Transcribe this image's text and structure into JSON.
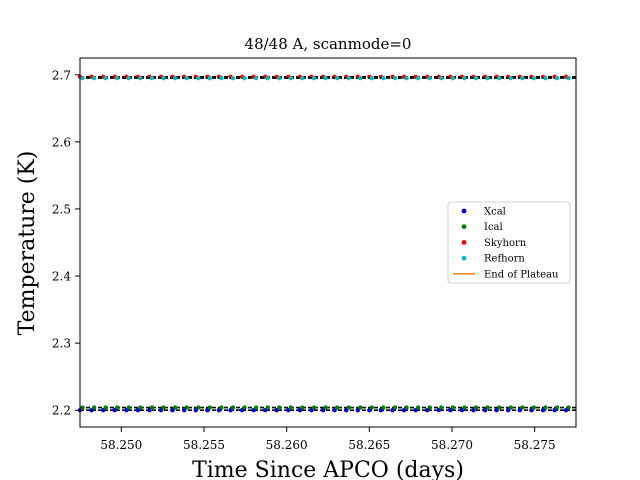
{
  "chart_data": {
    "type": "scatter",
    "title": "48/48 A, scanmode=0",
    "xlabel": "Time Since APCO (days)",
    "ylabel": "Temperature (K)",
    "xlim": [
      58.2475,
      58.2775
    ],
    "ylim": [
      2.175,
      2.725
    ],
    "x_ticks": [
      58.25,
      58.255,
      58.26,
      58.265,
      58.27,
      58.275
    ],
    "x_tick_labels": [
      "58.250",
      "58.255",
      "58.260",
      "58.265",
      "58.270",
      "58.275"
    ],
    "y_ticks": [
      2.2,
      2.3,
      2.4,
      2.5,
      2.6,
      2.7
    ],
    "y_tick_labels": [
      "2.2",
      "2.3",
      "2.4",
      "2.5",
      "2.6",
      "2.7"
    ],
    "grid": false,
    "legend_position": "center-right",
    "x_sampling": {
      "start": 58.2475,
      "end": 58.2775,
      "step": 0.0007
    },
    "series": [
      {
        "name": "Xcal",
        "color": "#0000ff",
        "values": 2.2,
        "marker": "dot"
      },
      {
        "name": "Ical",
        "color": "#008000",
        "values": 2.204,
        "marker": "dot"
      },
      {
        "name": "Skyhorn",
        "color": "#ff0000",
        "values": 2.697,
        "marker": "dot"
      },
      {
        "name": "Refhorn",
        "color": "#00bfbf",
        "values": 2.695,
        "marker": "dot"
      },
      {
        "name": "End of Plateau",
        "color": "#ff7f0e",
        "marker": "line"
      }
    ]
  }
}
